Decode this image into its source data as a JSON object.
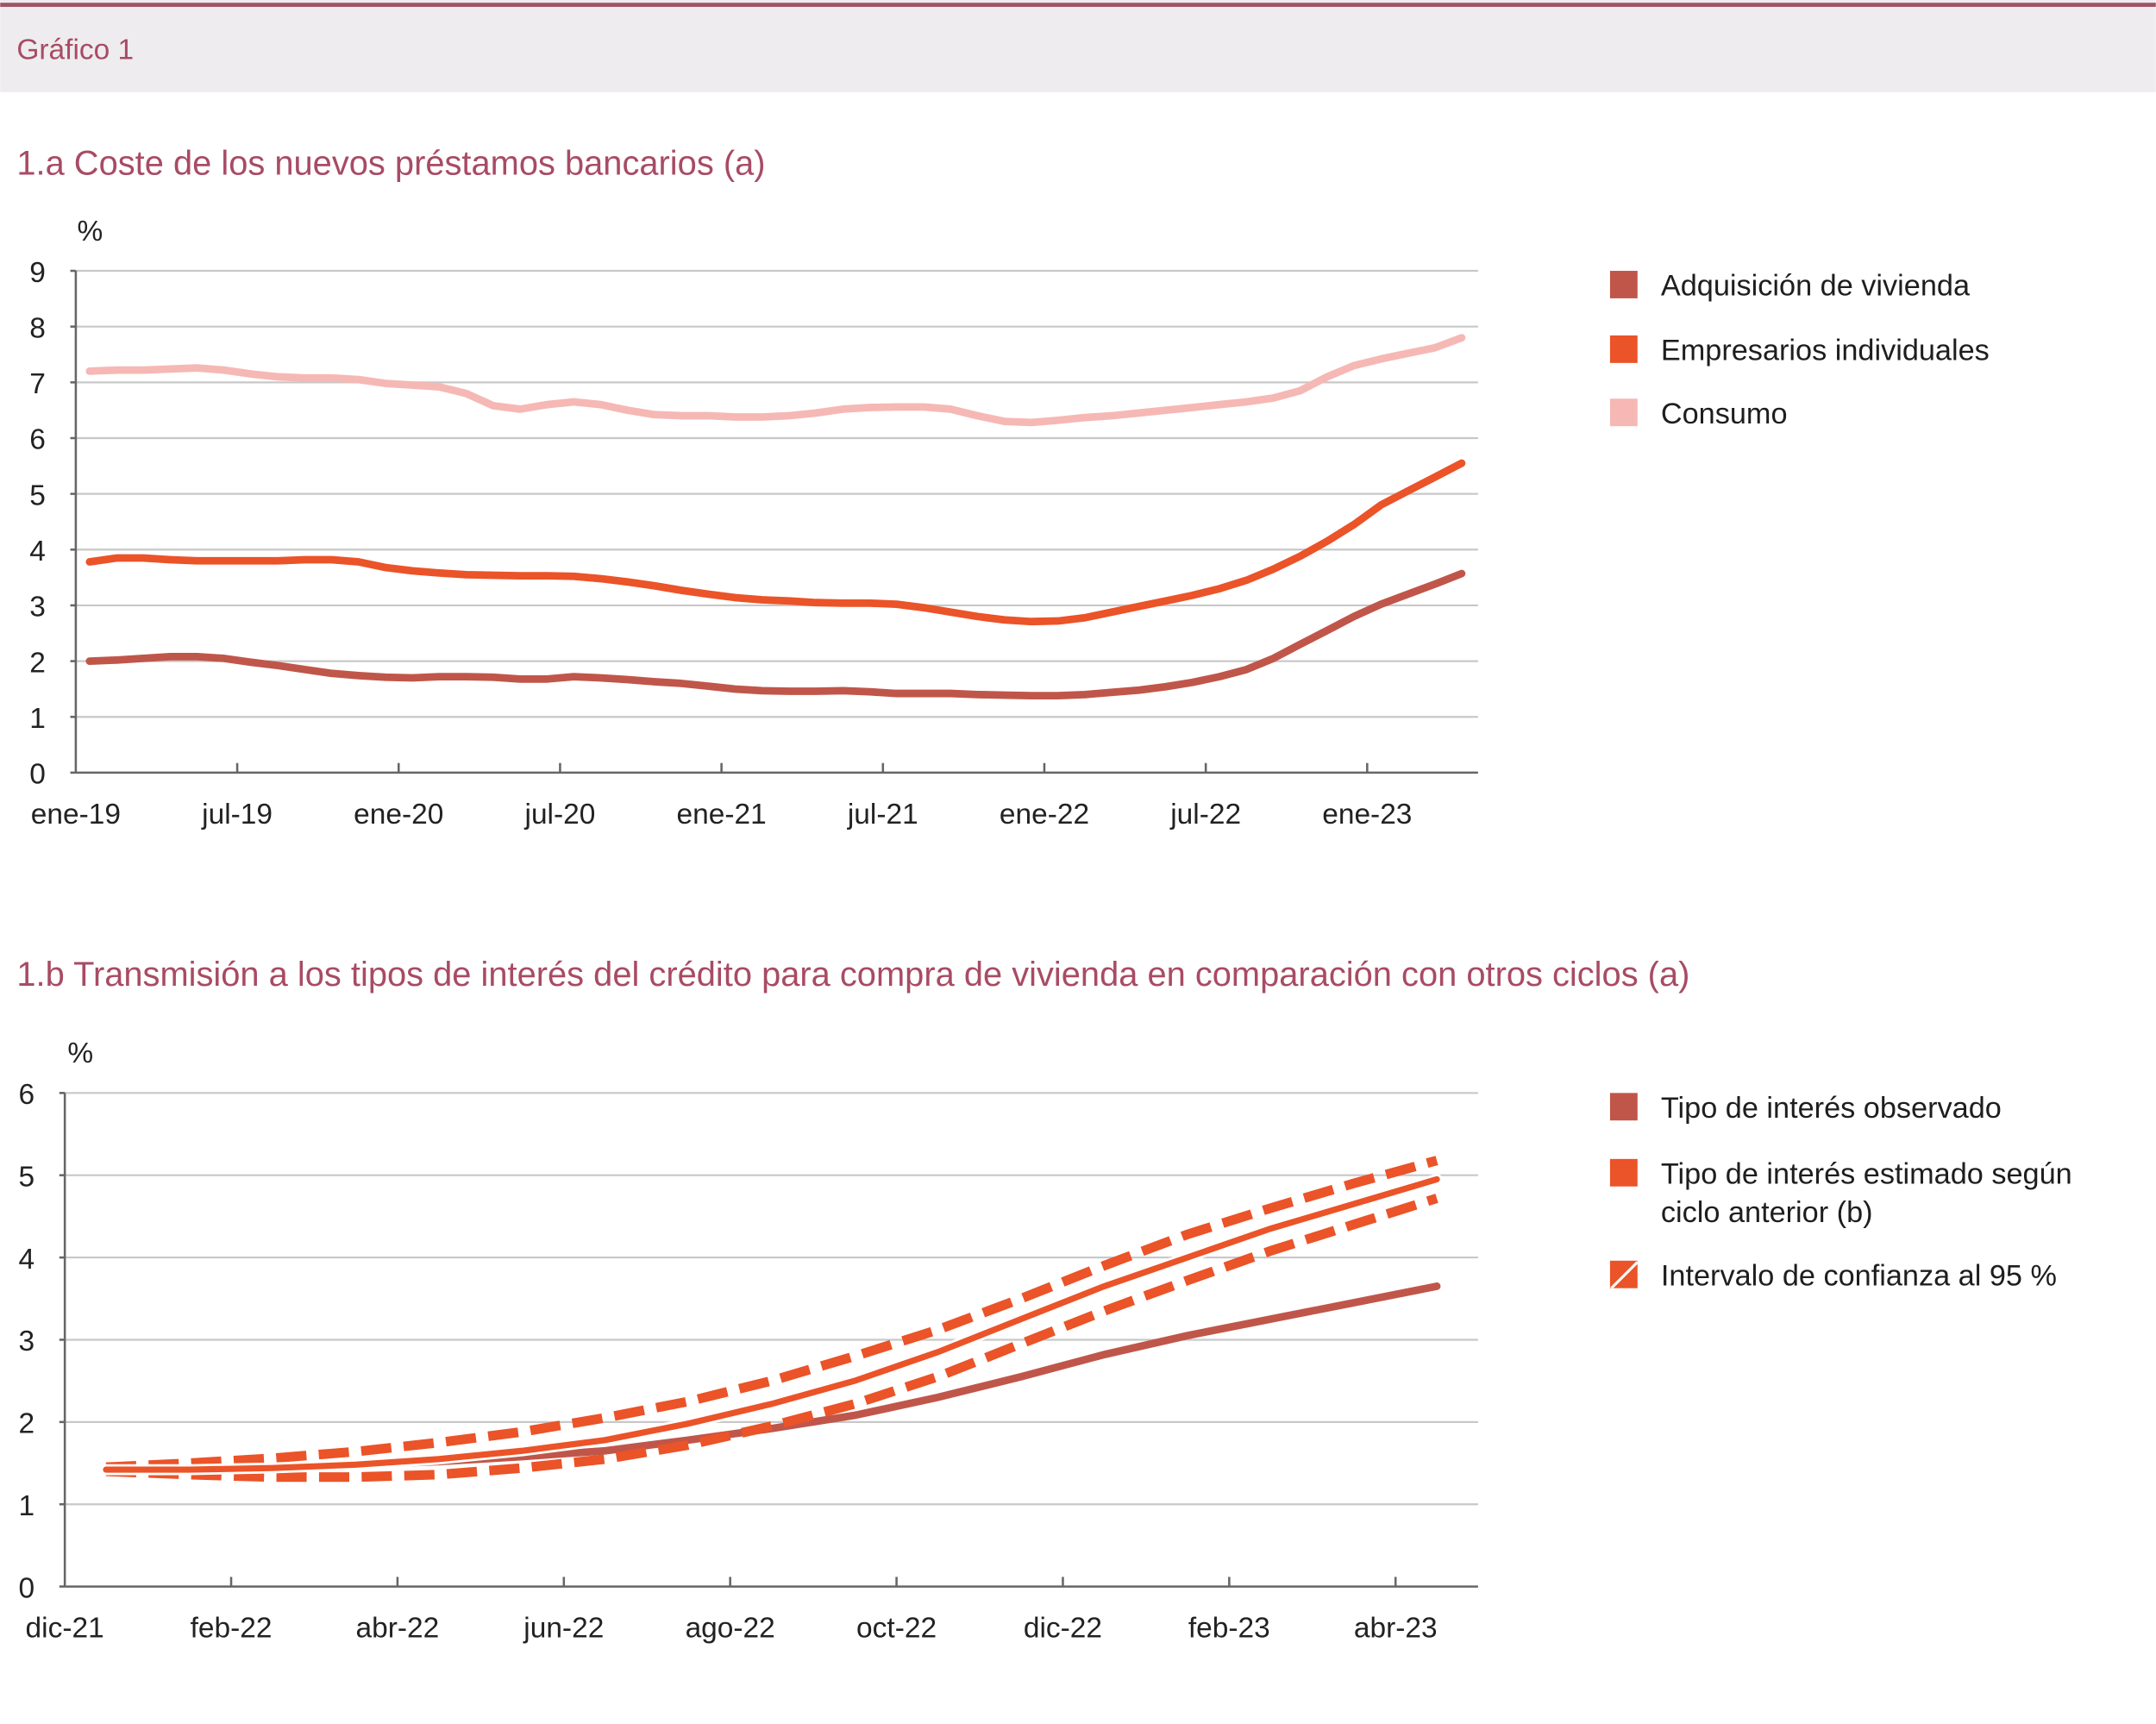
{
  "header": {
    "label": "Gráfico 1"
  },
  "colors": {
    "vivienda": "#c0564a",
    "empresarios": "#eb5328",
    "consumo": "#f6b8b4",
    "title": "#a84b64",
    "header_bg": "#eeecee",
    "header_line": "#a05466"
  },
  "chart_data": [
    {
      "type": "line",
      "title": "1.a  Coste de los nuevos préstamos bancarios (a)",
      "ylabel": "%",
      "ylim": [
        0,
        9
      ],
      "yticks": [
        "0",
        "1",
        "2",
        "3",
        "4",
        "5",
        "6",
        "7",
        "8",
        "9"
      ],
      "grid": true,
      "legend_position": "right",
      "xtick_labels": [
        "ene-19",
        "jul-19",
        "ene-20",
        "jul-20",
        "ene-21",
        "jul-21",
        "ene-22",
        "jul-22",
        "ene-23"
      ],
      "x_start": "ene-19",
      "x_frequency": "monthly",
      "x_end": "abr-23",
      "series": [
        {
          "name": "Adquisición de vivienda",
          "color": "#c0564a",
          "values": [
            2.0,
            2.02,
            2.05,
            2.08,
            2.08,
            2.05,
            1.98,
            1.92,
            1.85,
            1.78,
            1.74,
            1.71,
            1.7,
            1.72,
            1.72,
            1.71,
            1.68,
            1.68,
            1.72,
            1.7,
            1.67,
            1.63,
            1.6,
            1.55,
            1.5,
            1.47,
            1.46,
            1.46,
            1.47,
            1.45,
            1.42,
            1.42,
            1.42,
            1.4,
            1.39,
            1.38,
            1.38,
            1.4,
            1.44,
            1.48,
            1.54,
            1.62,
            1.72,
            1.85,
            2.05,
            2.3,
            2.55,
            2.8,
            3.02,
            3.2,
            3.38,
            3.57
          ]
        },
        {
          "name": "Empresarios individuales",
          "color": "#eb5328",
          "values": [
            3.78,
            3.85,
            3.85,
            3.82,
            3.8,
            3.8,
            3.8,
            3.8,
            3.82,
            3.82,
            3.78,
            3.68,
            3.62,
            3.58,
            3.55,
            3.54,
            3.53,
            3.53,
            3.52,
            3.48,
            3.42,
            3.35,
            3.27,
            3.2,
            3.14,
            3.1,
            3.08,
            3.05,
            3.04,
            3.04,
            3.02,
            2.96,
            2.88,
            2.8,
            2.74,
            2.71,
            2.72,
            2.78,
            2.88,
            2.98,
            3.08,
            3.18,
            3.3,
            3.45,
            3.65,
            3.88,
            4.15,
            4.45,
            4.8,
            5.05,
            5.3,
            5.55
          ]
        },
        {
          "name": "Consumo",
          "color": "#f6b8b4",
          "values": [
            7.2,
            7.22,
            7.22,
            7.24,
            7.26,
            7.22,
            7.15,
            7.1,
            7.08,
            7.08,
            7.05,
            6.98,
            6.95,
            6.92,
            6.8,
            6.58,
            6.52,
            6.6,
            6.65,
            6.6,
            6.5,
            6.42,
            6.4,
            6.4,
            6.38,
            6.38,
            6.4,
            6.45,
            6.52,
            6.55,
            6.56,
            6.56,
            6.52,
            6.4,
            6.3,
            6.28,
            6.32,
            6.37,
            6.4,
            6.45,
            6.5,
            6.55,
            6.6,
            6.65,
            6.72,
            6.85,
            7.1,
            7.3,
            7.42,
            7.52,
            7.62,
            7.8
          ]
        }
      ]
    },
    {
      "type": "line",
      "title": "1.b  Transmisión a los tipos de interés del crédito para compra de vivienda en comparación con otros ciclos (a)",
      "ylabel": "%",
      "ylim": [
        0,
        6
      ],
      "yticks": [
        "0",
        "1",
        "2",
        "3",
        "4",
        "5",
        "6"
      ],
      "grid": true,
      "legend_position": "right",
      "xtick_labels": [
        "dic-21",
        "feb-22",
        "abr-22",
        "jun-22",
        "ago-22",
        "oct-22",
        "dic-22",
        "feb-23",
        "abr-23"
      ],
      "x_start": "dic-21",
      "x_frequency": "monthly",
      "x_end": "abr-23",
      "series": [
        {
          "name": "Tipo de interés observado",
          "color": "#c0564a",
          "values": [
            1.42,
            1.43,
            1.45,
            1.48,
            1.52,
            1.58,
            1.65,
            1.78,
            1.92,
            2.08,
            2.3,
            2.55,
            2.82,
            3.05,
            3.25,
            3.45,
            3.65
          ]
        },
        {
          "name": "Tipo de interés estimado según ciclo anterior (b)",
          "color": "#eb5328",
          "values": [
            1.42,
            1.42,
            1.44,
            1.48,
            1.55,
            1.65,
            1.78,
            1.98,
            2.22,
            2.5,
            2.85,
            3.25,
            3.65,
            4.0,
            4.35,
            4.65,
            4.95
          ]
        }
      ],
      "confidence_interval": {
        "name": "Intervalo de confianza al 95 %",
        "color": "#eb5328",
        "upper": [
          1.45,
          1.5,
          1.56,
          1.64,
          1.75,
          1.88,
          2.05,
          2.25,
          2.5,
          2.8,
          3.12,
          3.5,
          3.9,
          4.28,
          4.6,
          4.9,
          5.18
        ],
        "lower": [
          1.4,
          1.36,
          1.33,
          1.33,
          1.36,
          1.44,
          1.55,
          1.72,
          1.95,
          2.22,
          2.55,
          2.95,
          3.35,
          3.72,
          4.08,
          4.4,
          4.72
        ]
      },
      "legend": [
        "Tipo de interés observado",
        "Tipo de interés estimado según",
        "ciclo anterior (b)",
        "Intervalo de confianza al 95 %"
      ]
    }
  ]
}
